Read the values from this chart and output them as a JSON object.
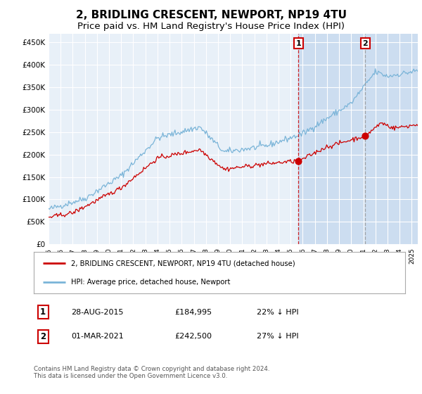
{
  "title": "2, BRIDLING CRESCENT, NEWPORT, NP19 4TU",
  "subtitle": "Price paid vs. HM Land Registry's House Price Index (HPI)",
  "title_fontsize": 11,
  "subtitle_fontsize": 9.5,
  "background_color": "#ffffff",
  "plot_bg_color": "#e8f0f8",
  "grid_color": "#ffffff",
  "hpi_color": "#7ab4d8",
  "price_color": "#cc0000",
  "marker1_date_x": 2015.65,
  "marker1_price": 184995,
  "marker2_date_x": 2021.17,
  "marker2_price": 242500,
  "marker1_label": "1",
  "marker2_label": "2",
  "legend_label_red": "2, BRIDLING CRESCENT, NEWPORT, NP19 4TU (detached house)",
  "legend_label_blue": "HPI: Average price, detached house, Newport",
  "footer": "Contains HM Land Registry data © Crown copyright and database right 2024.\nThis data is licensed under the Open Government Licence v3.0.",
  "ylim": [
    0,
    470000
  ],
  "yticks": [
    0,
    50000,
    100000,
    150000,
    200000,
    250000,
    300000,
    350000,
    400000,
    450000
  ],
  "xlim_start": 1995.0,
  "xlim_end": 2025.5,
  "xticks": [
    1995,
    1996,
    1997,
    1998,
    1999,
    2000,
    2001,
    2002,
    2003,
    2004,
    2005,
    2006,
    2007,
    2008,
    2009,
    2010,
    2011,
    2012,
    2013,
    2014,
    2015,
    2016,
    2017,
    2018,
    2019,
    2020,
    2021,
    2022,
    2023,
    2024,
    2025
  ],
  "shade_color": "#ccddf0"
}
